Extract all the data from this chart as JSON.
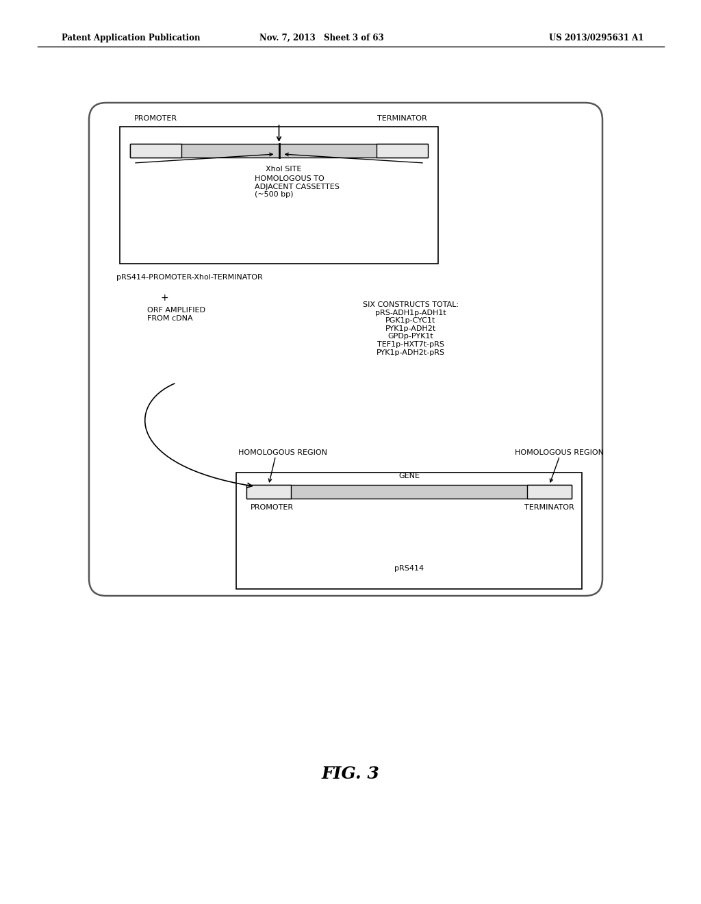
{
  "bg_color": "#ffffff",
  "header_left": "Patent Application Publication",
  "header_mid": "Nov. 7, 2013   Sheet 3 of 63",
  "header_right": "US 2013/0295631 A1",
  "fig_label": "FIG. 3",
  "promoter_label": "PROMOTER",
  "terminator_label": "TERMINATOR",
  "xhol_label": "XhoI SITE",
  "homologous_label": "HOMOLOGOUS TO\nADJACENT CASSETTES\n(~500 bp)",
  "pRS414_line1": "pRS414-PROMOTER-XhoI-TERMINATOR",
  "pRS414_line2": "+",
  "pRS414_line3": "ORF AMPLIFIED\nFROM cDNA",
  "six_constructs": "SIX CONSTRUCTS TOTAL:\npRS-ADH1p-ADH1t\nPGK1p-CYC1t\nPYK1p-ADH2t\nGPDp-PYK1t\nTEF1p-HXT7t-pRS\nPYK1p-ADH2t-pRS",
  "homologous_left_label": "HOMOLOGOUS REGION",
  "homologous_right_label": "HOMOLOGOUS REGION",
  "gene_label": "GENE",
  "bottom_promoter_label": "PROMOTER",
  "bottom_terminator_label": "TERMINATOR",
  "pRS414_label": "pRS414",
  "font_size_small": 8,
  "font_size_header": 8.5,
  "font_size_fig": 18
}
